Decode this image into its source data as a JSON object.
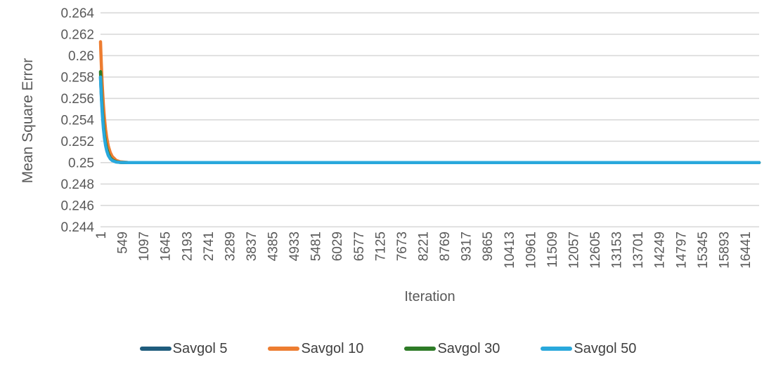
{
  "chart_data": {
    "type": "line",
    "title": "",
    "xlabel": "Iteration",
    "ylabel": "Mean Square Error",
    "xlim": [
      1,
      16800
    ],
    "ylim": [
      0.244,
      0.264
    ],
    "grid": "horizontal-only",
    "gridline_color": "#D9D9D9",
    "tick_label_color": "#595959",
    "axis_title_color": "#595959",
    "legend_text_color": "#3F3F3F",
    "legend_position": "bottom",
    "y_ticks": [
      "0.264",
      "0.262",
      "0.26",
      "0.258",
      "0.256",
      "0.254",
      "0.252",
      "0.25",
      "0.248",
      "0.246",
      "0.244"
    ],
    "x_ticks": [
      1,
      549,
      1097,
      1645,
      2193,
      2741,
      3289,
      3837,
      4385,
      4933,
      5481,
      6029,
      6577,
      7125,
      7673,
      8221,
      8769,
      9317,
      9865,
      10413,
      10961,
      11509,
      12057,
      12605,
      13153,
      13701,
      14249,
      14797,
      15345,
      15893,
      16441
    ],
    "x": [
      1,
      10,
      20,
      30,
      50,
      75,
      100,
      130,
      160,
      200,
      250,
      300,
      400,
      500,
      700,
      1000,
      1500,
      2000,
      3000,
      5000,
      8000,
      12000,
      16800
    ],
    "series": [
      {
        "name": "Savgol 5",
        "color": "#1F5C7D",
        "values": [
          0.258,
          0.25724,
          0.25648,
          0.2558,
          0.25464,
          0.25352,
          0.25266,
          0.25191,
          0.25137,
          0.25088,
          0.2505,
          0.25029,
          0.2501,
          0.25003,
          0.25,
          0.25,
          0.25,
          0.25,
          0.25,
          0.25,
          0.25,
          0.25,
          0.25
        ]
      },
      {
        "name": "Savgol 10",
        "color": "#ED7D31",
        "values": [
          0.2613,
          0.26033,
          0.25934,
          0.25846,
          0.25692,
          0.25539,
          0.2542,
          0.25311,
          0.2523,
          0.25154,
          0.25094,
          0.25057,
          0.25021,
          0.25008,
          0.25001,
          0.25,
          0.25,
          0.25,
          0.25,
          0.25,
          0.25,
          0.25,
          0.25
        ]
      },
      {
        "name": "Savgol 30",
        "color": "#2E7B27",
        "values": [
          0.2585,
          0.25765,
          0.2568,
          0.25604,
          0.25478,
          0.25356,
          0.25265,
          0.25186,
          0.25131,
          0.25082,
          0.25045,
          0.25025,
          0.25008,
          0.25002,
          0.25,
          0.25,
          0.25,
          0.25,
          0.25,
          0.25,
          0.25,
          0.25,
          0.25
        ]
      },
      {
        "name": "Savgol 50",
        "color": "#29A8DC",
        "values": [
          0.258,
          0.25715,
          0.25631,
          0.25557,
          0.25434,
          0.25317,
          0.25232,
          0.2516,
          0.2511,
          0.25066,
          0.25036,
          0.25019,
          0.25005,
          0.25002,
          0.25,
          0.25,
          0.25,
          0.25,
          0.25,
          0.25,
          0.25,
          0.25,
          0.25
        ]
      }
    ]
  }
}
